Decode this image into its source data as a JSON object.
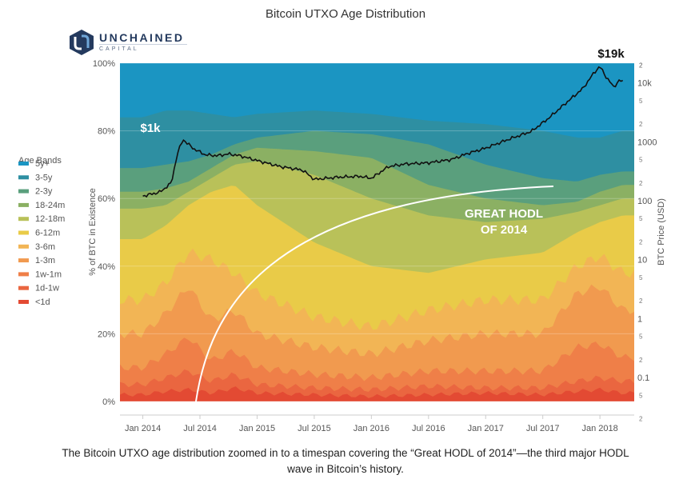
{
  "chart_data": {
    "type": "area",
    "title": "Bitcoin UTXO Age Distribution",
    "ylabel": "% of BTC in Existence",
    "y2label": "BTC Price (USD)",
    "ylim": [
      0,
      100
    ],
    "y_ticks": [
      "0%",
      "20%",
      "40%",
      "60%",
      "80%",
      "100%"
    ],
    "x_ticks": [
      "Jan 2014",
      "Jul 2014",
      "Jan 2015",
      "Jul 2015",
      "Jan 2016",
      "Jul 2016",
      "Jan 2017",
      "Jul 2017",
      "Jan 2018"
    ],
    "y2_scale": "log",
    "y2_major_ticks": [
      "0.1",
      "1",
      "10",
      "100",
      "1000",
      "10k"
    ],
    "y2_minor_ticks": [
      "2",
      "5"
    ],
    "legend_title": "Age Bands",
    "legend_position": "left",
    "series": [
      {
        "name": "<1d",
        "color": "#e34a33",
        "upper": [
          [
            0,
            2
          ],
          [
            0.2,
            3
          ],
          [
            0.4,
            3.5
          ],
          [
            0.6,
            2.5
          ],
          [
            0.8,
            4
          ],
          [
            1.0,
            2.5
          ],
          [
            1.5,
            2
          ],
          [
            2.0,
            1.5
          ],
          [
            2.5,
            2
          ],
          [
            3.0,
            2.5
          ],
          [
            3.5,
            2
          ],
          [
            3.8,
            3
          ],
          [
            4.0,
            3.5
          ],
          [
            4.2,
            2.5
          ]
        ]
      },
      {
        "name": "1d-1w",
        "color": "#ea6640",
        "upper": [
          [
            0,
            5
          ],
          [
            0.2,
            7
          ],
          [
            0.4,
            9
          ],
          [
            0.6,
            6
          ],
          [
            0.8,
            8
          ],
          [
            1.0,
            5
          ],
          [
            1.5,
            4
          ],
          [
            2.0,
            3.5
          ],
          [
            2.5,
            4.5
          ],
          [
            3.0,
            4
          ],
          [
            3.5,
            4
          ],
          [
            3.8,
            6
          ],
          [
            4.0,
            7
          ],
          [
            4.2,
            6
          ]
        ]
      },
      {
        "name": "1w-1m",
        "color": "#ef7f48",
        "upper": [
          [
            0,
            10
          ],
          [
            0.2,
            14
          ],
          [
            0.4,
            19
          ],
          [
            0.6,
            12
          ],
          [
            0.8,
            15
          ],
          [
            1.0,
            10
          ],
          [
            1.5,
            8
          ],
          [
            2.0,
            7
          ],
          [
            2.5,
            9
          ],
          [
            3.0,
            9
          ],
          [
            3.5,
            9
          ],
          [
            3.8,
            16
          ],
          [
            4.0,
            17
          ],
          [
            4.2,
            13
          ]
        ]
      },
      {
        "name": "1-3m",
        "color": "#f19a4f",
        "upper": [
          [
            0,
            20
          ],
          [
            0.2,
            26
          ],
          [
            0.4,
            34
          ],
          [
            0.6,
            24
          ],
          [
            0.8,
            27
          ],
          [
            1.0,
            20
          ],
          [
            1.5,
            16
          ],
          [
            2.0,
            14
          ],
          [
            2.5,
            18
          ],
          [
            3.0,
            20
          ],
          [
            3.5,
            20
          ],
          [
            3.8,
            32
          ],
          [
            4.0,
            34
          ],
          [
            4.2,
            27
          ]
        ]
      },
      {
        "name": "3-6m",
        "color": "#f2b555",
        "upper": [
          [
            0,
            30
          ],
          [
            0.2,
            35
          ],
          [
            0.4,
            44
          ],
          [
            0.6,
            42
          ],
          [
            0.8,
            38
          ],
          [
            1.0,
            32
          ],
          [
            1.5,
            25
          ],
          [
            2.0,
            22
          ],
          [
            2.5,
            27
          ],
          [
            3.0,
            30
          ],
          [
            3.5,
            30
          ],
          [
            3.8,
            40
          ],
          [
            4.0,
            43
          ],
          [
            4.2,
            38
          ]
        ]
      },
      {
        "name": "6-12m",
        "color": "#e9cb48",
        "upper": [
          [
            0,
            48
          ],
          [
            0.2,
            52
          ],
          [
            0.4,
            58
          ],
          [
            0.6,
            62
          ],
          [
            0.8,
            64
          ],
          [
            1.0,
            58
          ],
          [
            1.5,
            47
          ],
          [
            2.0,
            40
          ],
          [
            2.5,
            38
          ],
          [
            3.0,
            42
          ],
          [
            3.5,
            44
          ],
          [
            3.8,
            50
          ],
          [
            4.0,
            53
          ],
          [
            4.2,
            55
          ]
        ]
      },
      {
        "name": "12-18m",
        "color": "#b9c159",
        "upper": [
          [
            0,
            57
          ],
          [
            0.2,
            58
          ],
          [
            0.4,
            62
          ],
          [
            0.6,
            66
          ],
          [
            0.8,
            70
          ],
          [
            1.0,
            71
          ],
          [
            1.5,
            67
          ],
          [
            2.0,
            60
          ],
          [
            2.5,
            55
          ],
          [
            3.0,
            53
          ],
          [
            3.5,
            54
          ],
          [
            3.8,
            56
          ],
          [
            4.0,
            58
          ],
          [
            4.2,
            60
          ]
        ]
      },
      {
        "name": "18-24m",
        "color": "#8bb063",
        "upper": [
          [
            0,
            62
          ],
          [
            0.2,
            63
          ],
          [
            0.4,
            65
          ],
          [
            0.6,
            69
          ],
          [
            0.8,
            73
          ],
          [
            1.0,
            75
          ],
          [
            1.5,
            74
          ],
          [
            2.0,
            72
          ],
          [
            2.5,
            64
          ],
          [
            3.0,
            60
          ],
          [
            3.5,
            58
          ],
          [
            3.8,
            59
          ],
          [
            4.0,
            62
          ],
          [
            4.2,
            64
          ]
        ]
      },
      {
        "name": "2-3y",
        "color": "#5a9f7d",
        "upper": [
          [
            0,
            69
          ],
          [
            0.2,
            70
          ],
          [
            0.4,
            71
          ],
          [
            0.6,
            73
          ],
          [
            0.8,
            76
          ],
          [
            1.0,
            78
          ],
          [
            1.5,
            80
          ],
          [
            2.0,
            79
          ],
          [
            2.5,
            76
          ],
          [
            3.0,
            70
          ],
          [
            3.5,
            66
          ],
          [
            3.8,
            65
          ],
          [
            4.0,
            67
          ],
          [
            4.2,
            68
          ]
        ]
      },
      {
        "name": "3-5y",
        "color": "#2e8fa2",
        "upper": [
          [
            0,
            84
          ],
          [
            0.2,
            86
          ],
          [
            0.4,
            86
          ],
          [
            0.6,
            85
          ],
          [
            0.8,
            84
          ],
          [
            1.0,
            85
          ],
          [
            1.5,
            86
          ],
          [
            2.0,
            85
          ],
          [
            2.5,
            83
          ],
          [
            3.0,
            82
          ],
          [
            3.5,
            80
          ],
          [
            3.8,
            78
          ],
          [
            4.0,
            78
          ],
          [
            4.2,
            80
          ]
        ]
      },
      {
        "name": "5y+",
        "color": "#1b95c2",
        "upper": [
          [
            0,
            100
          ],
          [
            4.2,
            100
          ]
        ]
      }
    ],
    "price": {
      "name": "BTC Price (USD)",
      "color": "#111111",
      "points": [
        [
          0,
          120
        ],
        [
          0.15,
          140
        ],
        [
          0.25,
          200
        ],
        [
          0.3,
          600
        ],
        [
          0.35,
          1100
        ],
        [
          0.4,
          900
        ],
        [
          0.45,
          750
        ],
        [
          0.55,
          600
        ],
        [
          0.65,
          580
        ],
        [
          0.75,
          620
        ],
        [
          0.85,
          580
        ],
        [
          1.0,
          480
        ],
        [
          1.2,
          380
        ],
        [
          1.4,
          330
        ],
        [
          1.5,
          230
        ],
        [
          1.7,
          250
        ],
        [
          1.9,
          260
        ],
        [
          2.0,
          240
        ],
        [
          2.15,
          380
        ],
        [
          2.3,
          420
        ],
        [
          2.5,
          440
        ],
        [
          2.7,
          500
        ],
        [
          2.85,
          640
        ],
        [
          3.0,
          780
        ],
        [
          3.2,
          1100
        ],
        [
          3.4,
          1500
        ],
        [
          3.55,
          2500
        ],
        [
          3.7,
          4500
        ],
        [
          3.85,
          8000
        ],
        [
          3.95,
          15000
        ],
        [
          4.0,
          19000
        ],
        [
          4.05,
          13000
        ],
        [
          4.12,
          8500
        ],
        [
          4.17,
          11000
        ],
        [
          4.2,
          10500
        ]
      ]
    },
    "annotations": [
      {
        "text": "$1k",
        "color": "#ffffff"
      },
      {
        "text": "$19k",
        "color": "#111111"
      },
      {
        "text": "GREAT HODL",
        "color": "#ffffff"
      },
      {
        "text": "OF 2014",
        "color": "#ffffff"
      }
    ]
  },
  "logo": {
    "name": "UNCHAINED",
    "sub": "CAPITAL"
  },
  "caption": {
    "line1": "The Bitcoin UTXO age distribution zoomed in to a timespan covering the “Great HODL of 2014”—the third major HODL",
    "line2": "wave in Bitcoin’s history."
  },
  "colors": {
    "axis_text": "#555555",
    "title_text": "#333333",
    "logo_blue": "#243a5e"
  }
}
